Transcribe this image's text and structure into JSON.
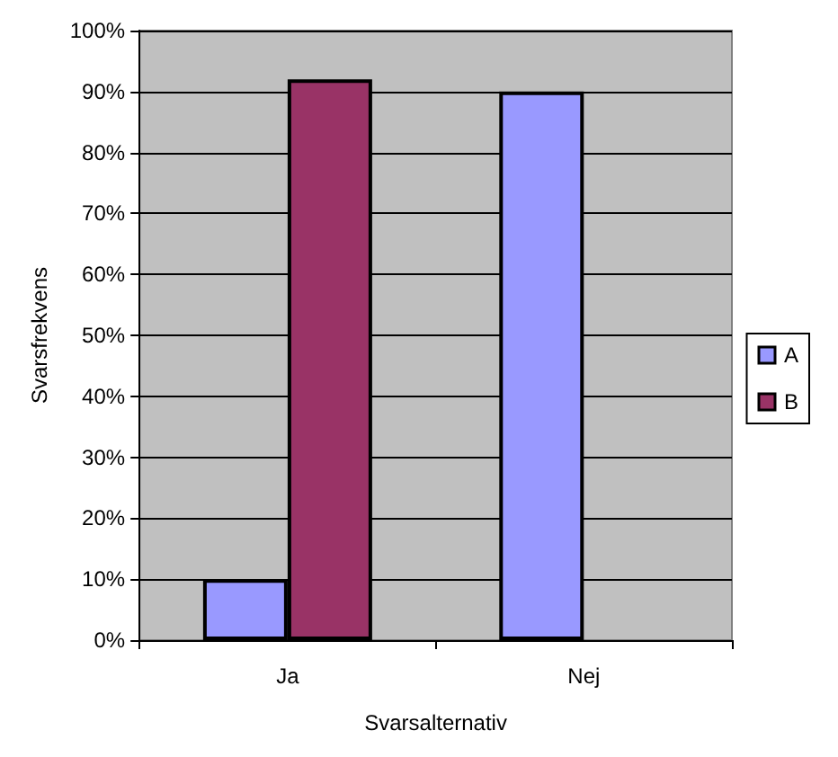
{
  "chart_data": {
    "type": "bar",
    "xlabel": "Svarsalternativ",
    "ylabel": "Svarsfrekvens",
    "categories": [
      "Ja",
      "Nej"
    ],
    "series": [
      {
        "name": "A",
        "color": "#9999ff",
        "values": [
          10,
          90
        ]
      },
      {
        "name": "B",
        "color": "#993366",
        "values": [
          92,
          null
        ]
      }
    ],
    "ylim": [
      0,
      100
    ],
    "yticks": [
      {
        "value": 0,
        "label": "0%"
      },
      {
        "value": 10,
        "label": "10%"
      },
      {
        "value": 20,
        "label": "20%"
      },
      {
        "value": 30,
        "label": "30%"
      },
      {
        "value": 40,
        "label": "40%"
      },
      {
        "value": 50,
        "label": "50%"
      },
      {
        "value": 60,
        "label": "60%"
      },
      {
        "value": 70,
        "label": "70%"
      },
      {
        "value": 80,
        "label": "80%"
      },
      {
        "value": 90,
        "label": "90%"
      },
      {
        "value": 100,
        "label": "100%"
      }
    ],
    "grid": "y",
    "legend": "right"
  }
}
